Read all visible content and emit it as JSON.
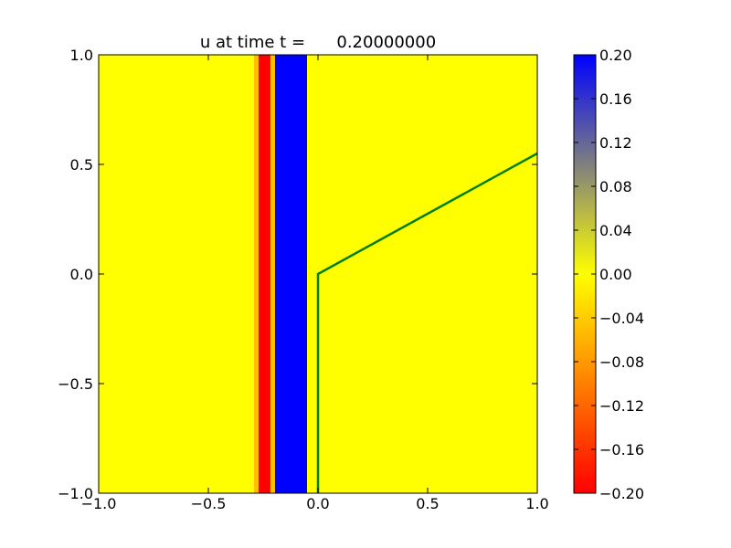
{
  "chart_data": {
    "type": "heatmap",
    "title": "u at time t =      0.20000000",
    "xlabel": "",
    "ylabel": "",
    "xlim": [
      -1.0,
      1.0
    ],
    "ylim": [
      -1.0,
      1.0
    ],
    "x_ticks": [
      "−1.0",
      "−0.5",
      "0.0",
      "0.5",
      "1.0"
    ],
    "y_ticks": [
      "−1.0",
      "−0.5",
      "0.0",
      "0.5",
      "1.0"
    ],
    "grid": false,
    "colormap": {
      "vmin": -0.2,
      "vmax": 0.2,
      "stops": [
        {
          "value": -0.2,
          "color": "#ff0000"
        },
        {
          "value": 0.0,
          "color": "#ffff00"
        },
        {
          "value": 0.2,
          "color": "#0000ff"
        }
      ]
    },
    "colorbar_ticks": [
      "−0.20",
      "−0.16",
      "−0.12",
      "−0.08",
      "−0.04",
      "0.00",
      "0.04",
      "0.08",
      "0.12",
      "0.16",
      "0.20"
    ],
    "background_value": 0.0,
    "bands": [
      {
        "x0": -1.0,
        "x1": -0.292,
        "value": 0.0
      },
      {
        "x0": -0.292,
        "x1": -0.271,
        "value": -0.05
      },
      {
        "x0": -0.271,
        "x1": -0.217,
        "value": -0.2
      },
      {
        "x0": -0.217,
        "x1": -0.196,
        "value": -0.05
      },
      {
        "x0": -0.196,
        "x1": -0.05,
        "value": 0.2
      },
      {
        "x0": -0.05,
        "x1": 1.0,
        "value": 0.0
      }
    ],
    "line": {
      "color": "#008000",
      "points": [
        [
          0.0,
          -1.0
        ],
        [
          0.0,
          0.0
        ],
        [
          1.0,
          0.55
        ]
      ]
    }
  }
}
